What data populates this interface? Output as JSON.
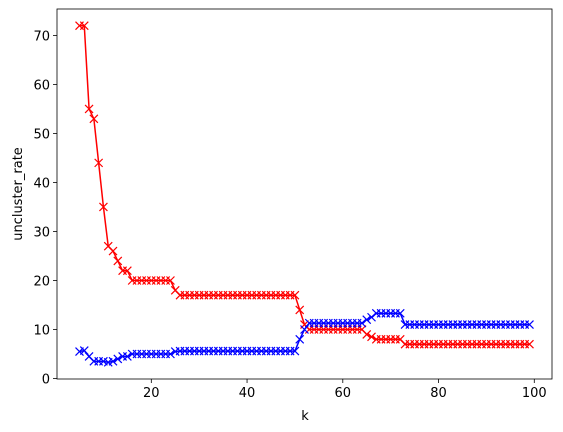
{
  "chart_data": {
    "type": "line",
    "x_label": "k",
    "y_label": "uncluster_rate",
    "x": [
      5,
      6,
      7,
      8,
      9,
      10,
      11,
      12,
      13,
      14,
      15,
      16,
      17,
      18,
      19,
      20,
      21,
      22,
      23,
      24,
      25,
      26,
      27,
      28,
      29,
      30,
      31,
      32,
      33,
      34,
      35,
      36,
      37,
      38,
      39,
      40,
      41,
      42,
      43,
      44,
      45,
      46,
      47,
      48,
      49,
      50,
      51,
      52,
      53,
      54,
      55,
      56,
      57,
      58,
      59,
      60,
      61,
      62,
      63,
      64,
      65,
      66,
      67,
      68,
      69,
      70,
      71,
      72,
      73,
      74,
      75,
      76,
      77,
      78,
      79,
      80,
      81,
      82,
      83,
      84,
      85,
      86,
      87,
      88,
      89,
      90,
      91,
      92,
      93,
      94,
      95,
      96,
      97,
      98,
      99
    ],
    "series": [
      {
        "color": "#ff0000",
        "marker": "x",
        "values": [
          72,
          72,
          55,
          53,
          44,
          35,
          27,
          26,
          24,
          22,
          22,
          20,
          20,
          20,
          20,
          20,
          20,
          20,
          20,
          20,
          18,
          17,
          17,
          17,
          17,
          17,
          17,
          17,
          17,
          17,
          17,
          17,
          17,
          17,
          17,
          17,
          17,
          17,
          17,
          17,
          17,
          17,
          17,
          17,
          17,
          17,
          14,
          11,
          10,
          10,
          10,
          10,
          10,
          10,
          10,
          10,
          10,
          10,
          10,
          10,
          9,
          8.5,
          8,
          8,
          8,
          8,
          8,
          8,
          7,
          7,
          7,
          7,
          7,
          7,
          7,
          7,
          7,
          7,
          7,
          7,
          7,
          7,
          7,
          7,
          7,
          7,
          7,
          7,
          7,
          7,
          7,
          7,
          7,
          7,
          7
        ]
      },
      {
        "color": "#0000ff",
        "marker": "x",
        "values": [
          5.5,
          5.7,
          4.5,
          3.5,
          3.5,
          3.5,
          3.3,
          3.5,
          4,
          4.5,
          4.5,
          5,
          5,
          5,
          5,
          5,
          5,
          5,
          5,
          5,
          5.5,
          5.6,
          5.6,
          5.6,
          5.6,
          5.6,
          5.6,
          5.6,
          5.6,
          5.6,
          5.6,
          5.6,
          5.6,
          5.6,
          5.6,
          5.6,
          5.6,
          5.6,
          5.6,
          5.6,
          5.6,
          5.6,
          5.6,
          5.6,
          5.6,
          5.6,
          8,
          10,
          11.3,
          11.3,
          11.3,
          11.3,
          11.3,
          11.3,
          11.3,
          11.3,
          11.3,
          11.3,
          11.3,
          11.3,
          12,
          12.5,
          13.3,
          13.3,
          13.3,
          13.3,
          13.3,
          13.3,
          11,
          11,
          11,
          11,
          11,
          11,
          11,
          11,
          11,
          11,
          11,
          11,
          11,
          11,
          11,
          11,
          11,
          11,
          11,
          11,
          11,
          11,
          11,
          11,
          11,
          11,
          11
        ]
      }
    ],
    "xlim": [
      0.3,
      103.7
    ],
    "ylim": [
      -0.1,
      75.4
    ],
    "xticks": [
      20,
      40,
      60,
      80,
      100
    ],
    "yticks": [
      0,
      10,
      20,
      30,
      40,
      50,
      60,
      70
    ],
    "grid": false
  }
}
